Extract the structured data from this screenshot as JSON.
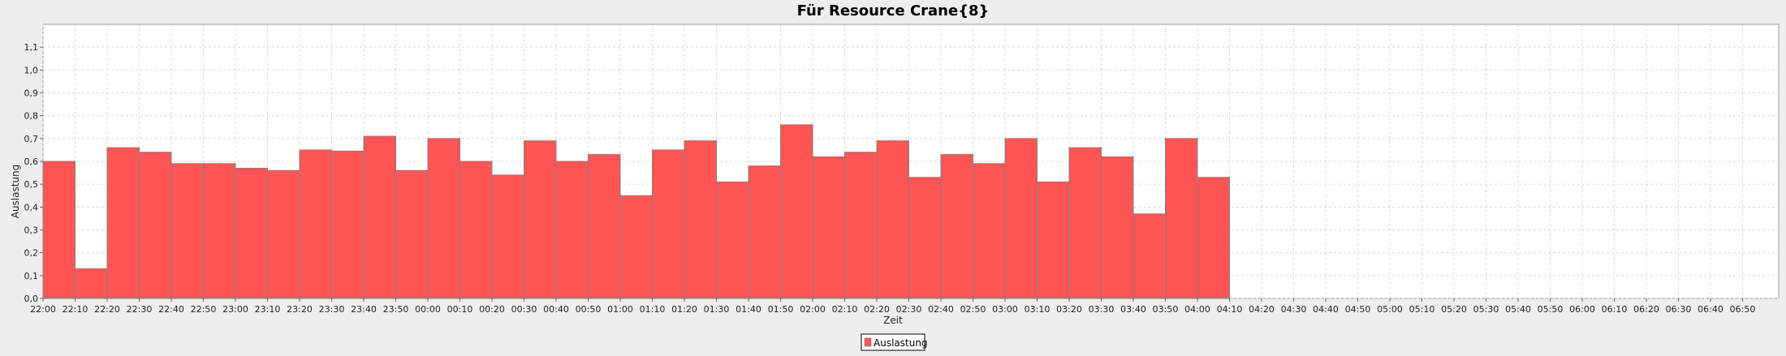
{
  "chart_data": {
    "type": "bar",
    "title": "Für Resource Crane{8}",
    "xlabel": "Zeit",
    "ylabel": "Auslastung",
    "ylim": [
      0,
      1.2
    ],
    "y_ticks": [
      "0,0",
      "0,1",
      "0,2",
      "0,3",
      "0,4",
      "0,5",
      "0,6",
      "0,7",
      "0,8",
      "0,9",
      "1,0",
      "1,1"
    ],
    "x_ticks": [
      "22:00",
      "22:10",
      "22:20",
      "22:30",
      "22:40",
      "22:50",
      "23:00",
      "23:10",
      "23:20",
      "23:30",
      "23:40",
      "23:50",
      "00:00",
      "00:10",
      "00:20",
      "00:30",
      "00:40",
      "00:50",
      "01:00",
      "01:10",
      "01:20",
      "01:30",
      "01:40",
      "01:50",
      "02:00",
      "02:10",
      "02:20",
      "02:30",
      "02:40",
      "02:50",
      "03:00",
      "03:10",
      "03:20",
      "03:30",
      "03:40",
      "03:50",
      "04:00",
      "04:10",
      "04:20",
      "04:30",
      "04:40",
      "04:50",
      "05:00",
      "05:10",
      "05:20",
      "05:30",
      "05:40",
      "05:50",
      "06:00",
      "06:10",
      "06:20",
      "06:30",
      "06:40",
      "06:50"
    ],
    "categories": [
      "22:00",
      "22:10",
      "22:20",
      "22:30",
      "22:40",
      "22:50",
      "23:00",
      "23:10",
      "23:20",
      "23:30",
      "23:40",
      "23:50",
      "00:00",
      "00:10",
      "00:20",
      "00:30",
      "00:40",
      "00:50",
      "01:00",
      "01:10",
      "01:20",
      "01:30",
      "01:40",
      "01:50",
      "02:00",
      "02:10",
      "02:20",
      "02:30",
      "02:40",
      "02:50",
      "03:00",
      "03:10",
      "03:20",
      "03:30",
      "03:40",
      "03:50",
      "04:00"
    ],
    "series": [
      {
        "name": "Auslastung",
        "color": "#ff5555",
        "values": [
          0.6,
          0.13,
          0.66,
          0.64,
          0.59,
          0.59,
          0.57,
          0.56,
          0.65,
          0.645,
          0.71,
          0.56,
          0.7,
          0.6,
          0.54,
          0.69,
          0.6,
          0.63,
          0.45,
          0.65,
          0.69,
          0.51,
          0.58,
          0.76,
          0.62,
          0.64,
          0.69,
          0.53,
          0.63,
          0.59,
          0.7,
          0.51,
          0.66,
          0.62,
          0.37,
          0.7,
          0.53
        ]
      }
    ],
    "grid": true,
    "legend": "bottom-center"
  }
}
